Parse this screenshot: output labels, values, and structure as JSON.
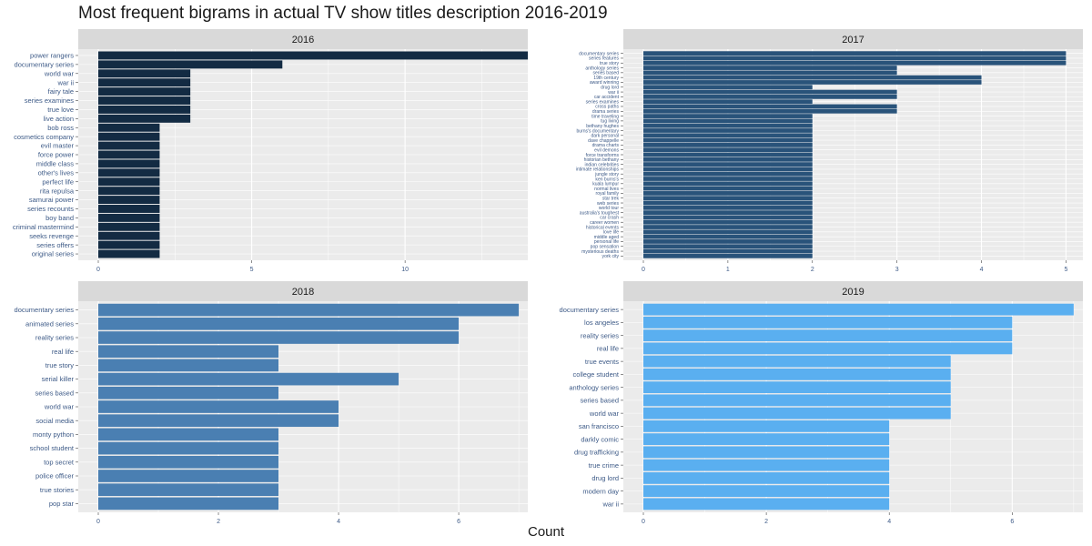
{
  "title": "Most frequent bigrams in actual TV show titles description 2016-2019",
  "xlabel": "Count",
  "colors": {
    "panel_bg": "#ebebeb",
    "strip_bg": "#d9d9d9",
    "grid": "#ffffff",
    "axis_text": "#3d5a87"
  },
  "chart_data": [
    {
      "type": "bar",
      "orientation": "horizontal",
      "facet": "2016",
      "color": "#132b43",
      "xlim": [
        0,
        14
      ],
      "ticks": [
        0,
        5,
        10
      ],
      "categories": [
        "power rangers",
        "documentary series",
        "world war",
        "war ii",
        "fairy tale",
        "series examines",
        "true love",
        "live action",
        "bob ross",
        "cosmetics company",
        "evil master",
        "force power",
        "middle class",
        "other's lives",
        "perfect life",
        "rita repulsa",
        "samurai power",
        "series recounts",
        "boy band",
        "criminal mastermind",
        "seeks revenge",
        "series offers",
        "original series"
      ],
      "values": [
        14,
        6,
        3,
        3,
        3,
        3,
        3,
        3,
        2,
        2,
        2,
        2,
        2,
        2,
        2,
        2,
        2,
        2,
        2,
        2,
        2,
        2,
        2
      ]
    },
    {
      "type": "bar",
      "orientation": "horizontal",
      "facet": "2017",
      "color": "#29537a",
      "xlim": [
        0,
        5.2
      ],
      "ticks": [
        0,
        1,
        2,
        3,
        4,
        5
      ],
      "categories": [
        "documentary series",
        "series features",
        "true story",
        "anthology series",
        "series based",
        "19th century",
        "award winning",
        "drug lord",
        "war ii",
        "car accident",
        "series examines",
        "cross paths",
        "drama series",
        "time traveling",
        "tug living",
        "bethany hughes",
        "burns's documentary",
        "dark personal",
        "dave chappelle",
        "drama charts",
        "evil demons",
        "force transforms",
        "historian bethany",
        "indian celebrities",
        "intimate relationships",
        "jungle story",
        "ken burns's",
        "kuala lumpur",
        "normal lives",
        "royal family",
        "star trek",
        "web series",
        "world tour",
        "australia's toughest",
        "car crash",
        "career women",
        "historical events",
        "love life",
        "middle aged",
        "personal life",
        "pop sensation",
        "mysterious deaths",
        "york city"
      ],
      "values": [
        5,
        5,
        5,
        3,
        3,
        4,
        4,
        2,
        3,
        3,
        2,
        3,
        3,
        2,
        2,
        2,
        2,
        2,
        2,
        2,
        2,
        2,
        2,
        2,
        2,
        2,
        2,
        2,
        2,
        2,
        2,
        2,
        2,
        2,
        2,
        2,
        2,
        2,
        2,
        2,
        2,
        2,
        2
      ]
    },
    {
      "type": "bar",
      "orientation": "horizontal",
      "facet": "2018",
      "color": "#4a7fb2",
      "xlim": [
        0,
        7.15
      ],
      "ticks": [
        0,
        2,
        4,
        6
      ],
      "categories": [
        "documentary series",
        "animated series",
        "reality series",
        "real life",
        "true story",
        "serial killer",
        "series based",
        "world war",
        "social media",
        "monty python",
        "school student",
        "top secret",
        "police officer",
        "true stories",
        "pop star"
      ],
      "values": [
        7,
        6,
        6,
        3,
        3,
        5,
        3,
        4,
        4,
        3,
        3,
        3,
        3,
        3,
        3
      ]
    },
    {
      "type": "bar",
      "orientation": "horizontal",
      "facet": "2019",
      "color": "#5aaff0",
      "xlim": [
        0,
        7.15
      ],
      "ticks": [
        0,
        2,
        4,
        6
      ],
      "categories": [
        "documentary series",
        "los angeles",
        "reality series",
        "real life",
        "true events",
        "college student",
        "anthology series",
        "series based",
        "world war",
        "san francisco",
        "darkly comic",
        "drug trafficking",
        "true crime",
        "drug lord",
        "modern day",
        "war ii"
      ],
      "values": [
        7,
        6,
        6,
        6,
        5,
        5,
        5,
        5,
        5,
        4,
        4,
        4,
        4,
        4,
        4,
        4
      ]
    }
  ]
}
